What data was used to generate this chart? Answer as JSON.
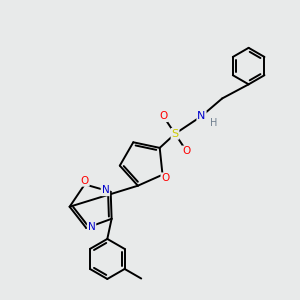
{
  "bg_color": "#e8eaea",
  "bond_color": "#000000",
  "atom_colors": {
    "O": "#ff0000",
    "N": "#0000cd",
    "S": "#cccc00",
    "H": "#708090",
    "C": "#000000"
  },
  "lw": 1.4
}
